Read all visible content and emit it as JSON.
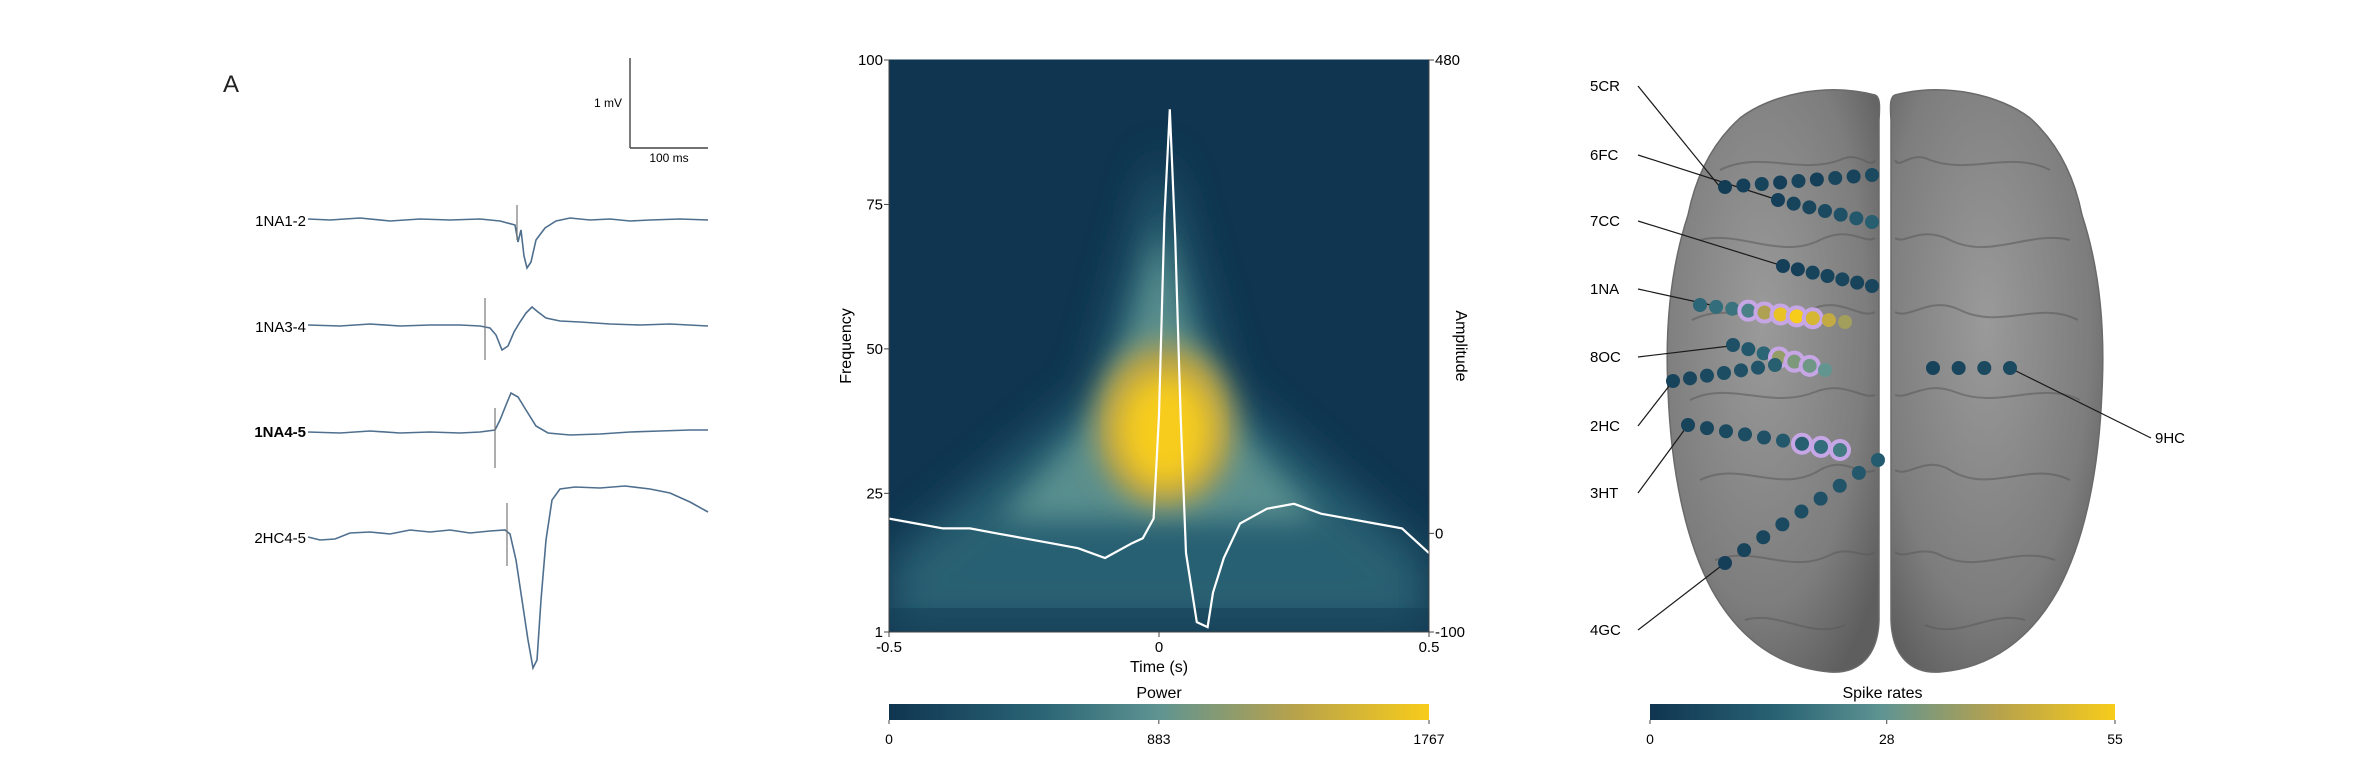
{
  "panel_label": "A",
  "traces": {
    "scalebar": {
      "v_label": "1 mV",
      "h_label": "100 ms"
    },
    "channels": [
      {
        "label": "1NA1-2",
        "bold": false
      },
      {
        "label": "1NA3-4",
        "bold": false
      },
      {
        "label": "1NA4-5",
        "bold": true
      },
      {
        "label": "2HC4-5",
        "bold": false
      }
    ]
  },
  "chart_data": [
    {
      "type": "heatmap",
      "title": "",
      "xlabel": "Time (s)",
      "ylabel": "Frequency",
      "y2label": "Amplitude",
      "xlim": [
        -0.5,
        0.5
      ],
      "ylim": [
        1,
        100
      ],
      "y2lim": [
        -100,
        480
      ],
      "x_tick_labels": [
        "-0.5",
        "0",
        "0.5"
      ],
      "y_tick_labels": [
        "1",
        "25",
        "50",
        "75",
        "100"
      ],
      "y2_tick_labels": [
        "-100",
        "0",
        "480"
      ],
      "colorbar": {
        "label": "Power",
        "range": [
          0,
          1767
        ],
        "tick_labels": [
          "0",
          "883",
          "1767"
        ],
        "colors": [
          "#0f3550",
          "#2a6475",
          "#5f9492",
          "#b7a24c",
          "#f7cc1b"
        ]
      },
      "hotspot": {
        "time": 0.02,
        "frequency": 35,
        "power": 1767
      },
      "series": [
        {
          "x": [
            -0.5,
            -0.45,
            -0.4,
            -0.35,
            -0.3,
            -0.25,
            -0.2,
            -0.15,
            -0.1,
            -0.05,
            -0.03,
            -0.01,
            0.0,
            0.01,
            0.02,
            0.03,
            0.04,
            0.05,
            0.07,
            0.09,
            0.1,
            0.12,
            0.15,
            0.2,
            0.25,
            0.3,
            0.35,
            0.4,
            0.45,
            0.5
          ],
          "y": [
            15,
            10,
            5,
            5,
            0,
            -5,
            -10,
            -15,
            -25,
            -10,
            -5,
            15,
            120,
            320,
            430,
            300,
            120,
            -20,
            -90,
            -95,
            -60,
            -25,
            10,
            25,
            30,
            20,
            15,
            10,
            5,
            -20
          ]
        }
      ]
    },
    {
      "type": "heatmap",
      "title": "",
      "colorbar": {
        "label": "Spike rates",
        "range": [
          0,
          55
        ],
        "tick_labels": [
          "0",
          "28",
          "55"
        ],
        "colors": [
          "#0f3550",
          "#2a6475",
          "#5f9492",
          "#b7a24c",
          "#f7cc1b"
        ]
      },
      "electrodes": [
        {
          "label": "5CR",
          "rates": [
            2,
            3,
            4,
            3,
            4,
            3,
            5,
            4,
            6
          ]
        },
        {
          "label": "6FC",
          "rates": [
            3,
            4,
            5,
            6,
            8,
            10,
            12
          ]
        },
        {
          "label": "7CC",
          "rates": [
            3,
            3,
            4,
            4,
            5,
            4,
            5
          ]
        },
        {
          "label": "1NA",
          "rates": [
            14,
            16,
            18,
            22,
            40,
            52,
            55,
            48,
            44,
            38
          ]
        },
        {
          "label": "8OC",
          "rates": [
            8,
            10,
            14,
            36,
            32,
            30,
            28
          ]
        },
        {
          "label": "2HC",
          "rates": [
            4,
            5,
            6,
            7,
            8,
            9,
            12
          ]
        },
        {
          "label": "3HT",
          "rates": [
            4,
            5,
            6,
            7,
            8,
            10,
            12,
            16,
            20
          ]
        },
        {
          "label": "4GC",
          "rates": [
            3,
            4,
            5,
            6,
            7,
            8,
            9,
            10,
            11
          ]
        },
        {
          "label": "9HC",
          "rates": [
            4,
            5,
            6,
            6
          ]
        }
      ]
    }
  ]
}
